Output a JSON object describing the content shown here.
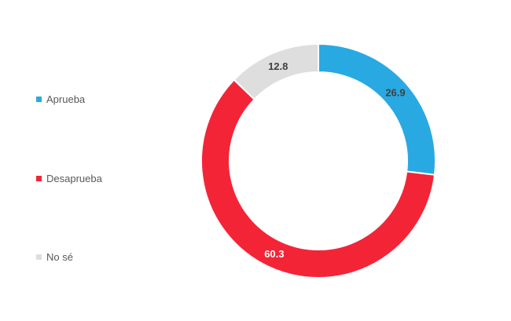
{
  "chart_data": {
    "type": "pie",
    "variant": "donut",
    "categories": [
      "Aprueba",
      "Desaprueba",
      "No sé"
    ],
    "values": [
      26.9,
      60.3,
      12.8
    ],
    "colors": [
      "#29a9e1",
      "#f42437",
      "#dedede"
    ],
    "label_colors": [
      "#404040",
      "#ffffff",
      "#404040"
    ],
    "title": "",
    "legend_position": "left"
  }
}
